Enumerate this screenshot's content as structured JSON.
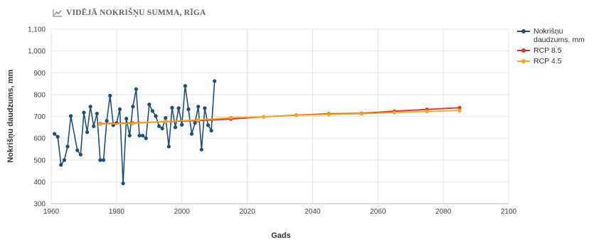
{
  "header": {
    "title": "VIDĒJĀ NOKRIŠŅU SUMMA, RĪGA",
    "icon": "line-chart-icon"
  },
  "chart_data": {
    "type": "line",
    "xlabel": "Gads",
    "ylabel": "Nokrišņu daudzums, mm",
    "xlim": [
      1960,
      2100
    ],
    "ylim": [
      300,
      1100
    ],
    "xticks": [
      "1960",
      "1980",
      "2000",
      "2020",
      "2040",
      "2060",
      "2080",
      "2100"
    ],
    "yticks": [
      "300",
      "400",
      "500",
      "600",
      "700",
      "800",
      "900",
      "1,000",
      "1,100"
    ],
    "grid": true,
    "legend": "right",
    "series": [
      {
        "name": "Nokrišņu daudzums, mm",
        "color": "#1f4e79",
        "x": [
          1961,
          1962,
          1963,
          1964,
          1965,
          1966,
          1968,
          1969,
          1970,
          1971,
          1972,
          1973,
          1974,
          1975,
          1976,
          1977,
          1978,
          1979,
          1980,
          1981,
          1982,
          1983,
          1984,
          1985,
          1986,
          1987,
          1988,
          1989,
          1990,
          1991,
          1992,
          1993,
          1994,
          1995,
          1996,
          1997,
          1998,
          1999,
          2000,
          2001,
          2002,
          2003,
          2004,
          2005,
          2006,
          2007,
          2008,
          2009,
          2010
        ],
        "y": [
          620,
          607,
          478,
          500,
          562,
          702,
          545,
          525,
          718,
          628,
          745,
          655,
          713,
          500,
          500,
          680,
          795,
          660,
          670,
          733,
          393,
          690,
          612,
          745,
          825,
          612,
          612,
          600,
          755,
          725,
          702,
          655,
          645,
          693,
          562,
          740,
          650,
          738,
          662,
          840,
          733,
          620,
          670,
          745,
          548,
          738,
          660,
          635,
          862
        ]
      },
      {
        "name": "RCP 8.5",
        "color": "#d9352b",
        "x": [
          1975,
          1985,
          1995,
          2005,
          2015,
          2025,
          2035,
          2045,
          2055,
          2065,
          2075,
          2085
        ],
        "y": [
          667,
          670,
          676,
          681,
          688,
          698,
          706,
          712,
          714,
          724,
          732,
          740
        ]
      },
      {
        "name": "RCP 4.5",
        "color": "#f5a623",
        "x": [
          1975,
          1985,
          1995,
          2005,
          2015,
          2025,
          2035,
          2045,
          2055,
          2065,
          2075,
          2085
        ],
        "y": [
          665,
          668,
          677,
          684,
          694,
          698,
          705,
          709,
          712,
          718,
          723,
          727
        ]
      }
    ]
  }
}
